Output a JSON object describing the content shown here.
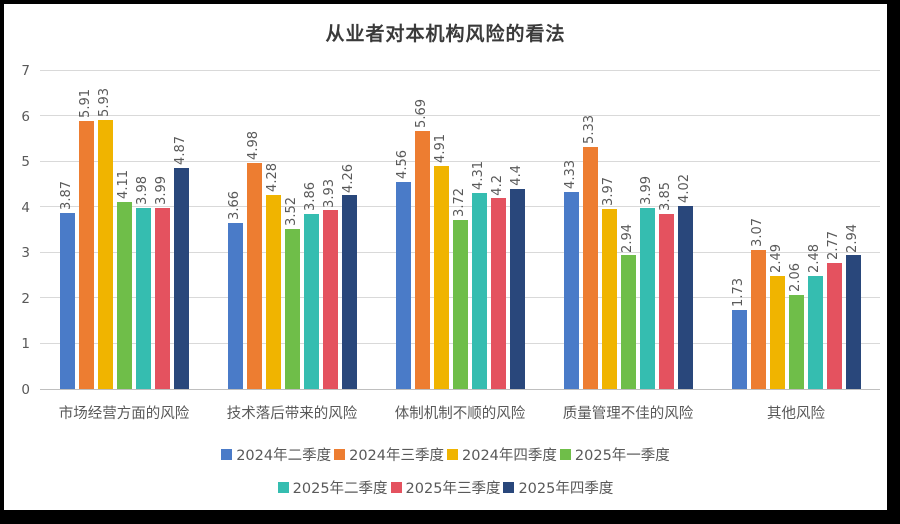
{
  "colors": {
    "background": "#ffffff",
    "frame_border_color": "#000000",
    "grid_color": "#d9d9d9",
    "axis_color": "#bfbfbf",
    "text_color": "#595959",
    "title_color": "#3a3a3a"
  },
  "chart_data": {
    "type": "bar",
    "title": "从业者对本机构风险的看法",
    "xlabel": "",
    "ylabel": "",
    "ylim": [
      0,
      7
    ],
    "yticks": [
      0,
      1,
      2,
      3,
      4,
      5,
      6,
      7
    ],
    "grid": true,
    "legend_position": "bottom",
    "data_label_orientation": "rotated-90-bottom-up",
    "categories": [
      "市场经营方面的风险",
      "技术落后带来的风险",
      "体制机制不顺的风险",
      "质量管理不佳的风险",
      "其他风险"
    ],
    "series": [
      {
        "name": "2024年二季度",
        "color": "#4a7bc8",
        "values": [
          3.87,
          3.66,
          4.56,
          4.33,
          1.73
        ]
      },
      {
        "name": "2024年三季度",
        "color": "#ed7d31",
        "values": [
          5.91,
          4.98,
          5.69,
          5.33,
          3.07
        ]
      },
      {
        "name": "2024年四季度",
        "color": "#f0b400",
        "values": [
          5.93,
          4.28,
          4.91,
          3.97,
          2.49
        ]
      },
      {
        "name": "2025年一季度",
        "color": "#6fbe49",
        "values": [
          4.11,
          3.52,
          3.72,
          2.94,
          2.06
        ]
      },
      {
        "name": "2025年二季度",
        "color": "#35bdb0",
        "values": [
          3.98,
          3.86,
          4.31,
          3.99,
          2.48
        ]
      },
      {
        "name": "2025年三季度",
        "color": "#e4525f",
        "values": [
          3.99,
          3.93,
          4.2,
          3.85,
          2.77
        ]
      },
      {
        "name": "2025年四季度",
        "color": "#29477b",
        "values": [
          4.87,
          4.26,
          4.4,
          4.02,
          2.94
        ]
      }
    ],
    "legend_rows": [
      [
        0,
        1,
        2,
        3
      ],
      [
        4,
        5,
        6
      ]
    ]
  }
}
